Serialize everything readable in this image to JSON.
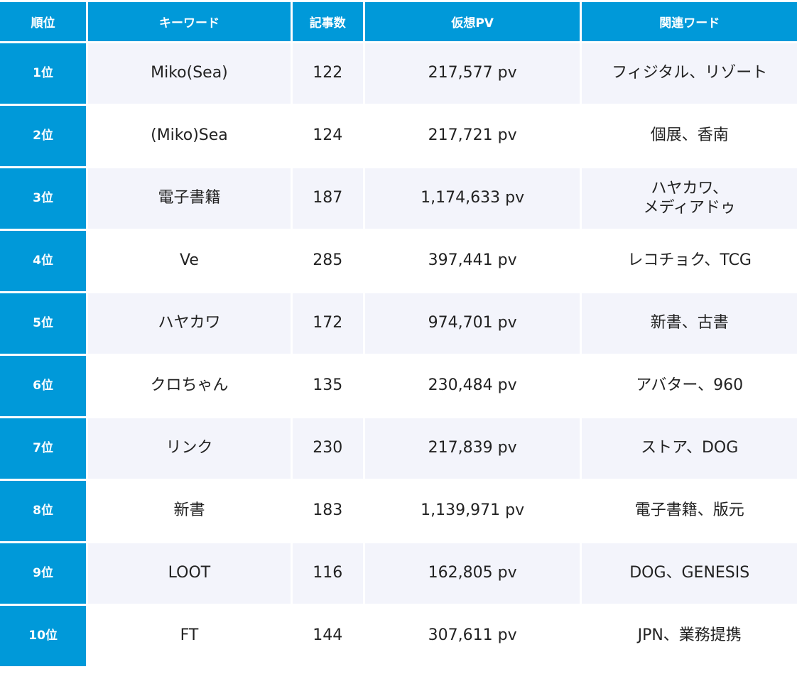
{
  "table": {
    "headers": [
      "順位",
      "キーワード",
      "記事数",
      "仮想PV",
      "関連ワード"
    ],
    "rows": [
      {
        "rank": "1位",
        "keyword": "Miko(Sea)",
        "articles": "122",
        "pv": "217,577 pv",
        "related": "フィジタル、リゾート"
      },
      {
        "rank": "2位",
        "keyword": "(Miko)Sea",
        "articles": "124",
        "pv": "217,721 pv",
        "related": "個展、香南"
      },
      {
        "rank": "3位",
        "keyword": "電子書籍",
        "articles": "187",
        "pv": "1,174,633 pv",
        "related": "ハヤカワ、\nメディアドゥ"
      },
      {
        "rank": "4位",
        "keyword": "Ve",
        "articles": "285",
        "pv": "397,441 pv",
        "related": "レコチョク、TCG"
      },
      {
        "rank": "5位",
        "keyword": "ハヤカワ",
        "articles": "172",
        "pv": "974,701 pv",
        "related": "新書、古書"
      },
      {
        "rank": "6位",
        "keyword": "クロちゃん",
        "articles": "135",
        "pv": "230,484 pv",
        "related": "アバター、960"
      },
      {
        "rank": "7位",
        "keyword": "リンク",
        "articles": "230",
        "pv": "217,839 pv",
        "related": "ストア、DOG"
      },
      {
        "rank": "8位",
        "keyword": "新書",
        "articles": "183",
        "pv": "1,139,971 pv",
        "related": "電子書籍、版元"
      },
      {
        "rank": "9位",
        "keyword": "LOOT",
        "articles": "116",
        "pv": "162,805 pv",
        "related": "DOG、GENESIS"
      },
      {
        "rank": "10位",
        "keyword": "FT",
        "articles": "144",
        "pv": "307,611 pv",
        "related": "JPN、業務提携"
      }
    ]
  },
  "colors": {
    "header_bg": "#0099d9",
    "header_text": "#ffffff",
    "row_alt_bg": "#f3f4fb",
    "row_bg": "#ffffff",
    "text": "#222222"
  }
}
